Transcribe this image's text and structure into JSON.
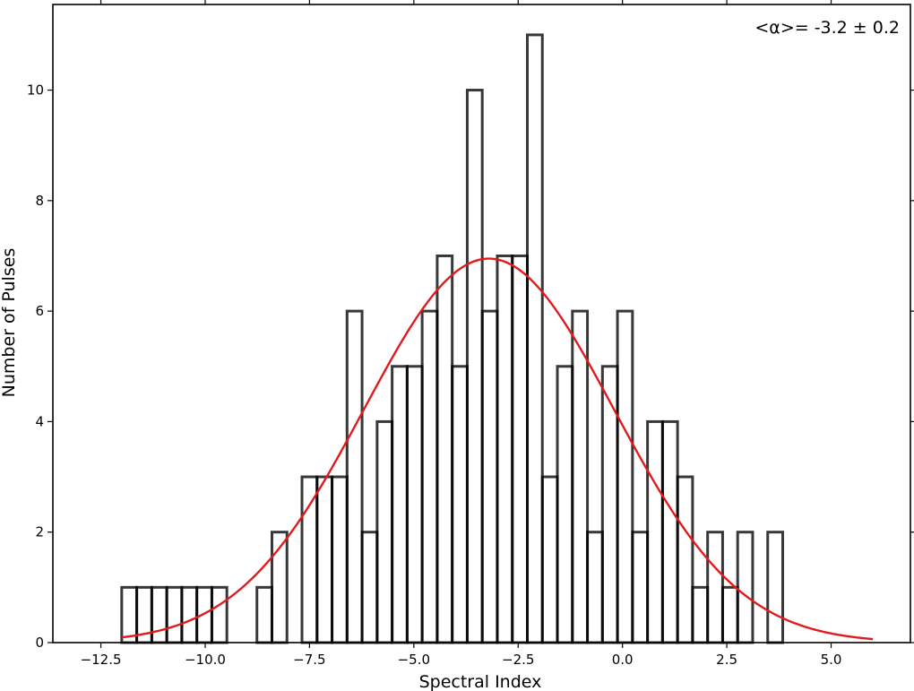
{
  "chart_data": {
    "type": "bar",
    "xlabel": "Spectral Index",
    "ylabel": "Number of Pulses",
    "annotation": "<α>= -3.2 ± 0.2",
    "xlim": [
      -13.65,
      6.9
    ],
    "ylim": [
      0,
      11.55
    ],
    "xticks": [
      -12.5,
      -10.0,
      -7.5,
      -5.0,
      -2.5,
      0.0,
      2.5,
      5.0
    ],
    "xtick_labels": [
      "−12.5",
      "−10.0",
      "−7.5",
      "−5.0",
      "−2.5",
      "0.0",
      "2.5",
      "5.0"
    ],
    "yticks": [
      0,
      2,
      4,
      6,
      8,
      10
    ],
    "ytick_labels": [
      "0",
      "2",
      "4",
      "6",
      "8",
      "10"
    ],
    "grid": false,
    "bin_width": 0.36,
    "bins": [
      {
        "x": -12.0,
        "count": 1
      },
      {
        "x": -11.64,
        "count": 1
      },
      {
        "x": -11.28,
        "count": 1
      },
      {
        "x": -10.92,
        "count": 1
      },
      {
        "x": -10.56,
        "count": 1
      },
      {
        "x": -10.2,
        "count": 1
      },
      {
        "x": -9.84,
        "count": 1
      },
      {
        "x": -8.76,
        "count": 1
      },
      {
        "x": -8.4,
        "count": 2
      },
      {
        "x": -7.68,
        "count": 3
      },
      {
        "x": -7.32,
        "count": 3
      },
      {
        "x": -6.96,
        "count": 3
      },
      {
        "x": -6.6,
        "count": 6
      },
      {
        "x": -6.24,
        "count": 2
      },
      {
        "x": -5.88,
        "count": 4
      },
      {
        "x": -5.52,
        "count": 5
      },
      {
        "x": -5.16,
        "count": 5
      },
      {
        "x": -4.8,
        "count": 6
      },
      {
        "x": -4.44,
        "count": 7
      },
      {
        "x": -4.08,
        "count": 5
      },
      {
        "x": -3.72,
        "count": 10
      },
      {
        "x": -3.36,
        "count": 6
      },
      {
        "x": -3.0,
        "count": 7
      },
      {
        "x": -2.64,
        "count": 7
      },
      {
        "x": -2.28,
        "count": 11
      },
      {
        "x": -1.92,
        "count": 3
      },
      {
        "x": -1.56,
        "count": 5
      },
      {
        "x": -1.2,
        "count": 6
      },
      {
        "x": -0.84,
        "count": 2
      },
      {
        "x": -0.48,
        "count": 5
      },
      {
        "x": -0.12,
        "count": 6
      },
      {
        "x": 0.24,
        "count": 2
      },
      {
        "x": 0.6,
        "count": 4
      },
      {
        "x": 0.96,
        "count": 4
      },
      {
        "x": 1.32,
        "count": 3
      },
      {
        "x": 1.68,
        "count": 1
      },
      {
        "x": 2.04,
        "count": 2
      },
      {
        "x": 2.4,
        "count": 1
      },
      {
        "x": 2.76,
        "count": 2
      },
      {
        "x": 3.48,
        "count": 2
      }
    ],
    "fit": {
      "type": "gaussian",
      "amplitude": 6.95,
      "mean": -3.2,
      "sigma": 3.0,
      "x_range": [
        -12.0,
        6.0
      ]
    },
    "colors": {
      "bar_edge": "#000000",
      "bar_fill": "#ffffff",
      "fit_line": "#e31a1c",
      "axes": "#000000"
    }
  }
}
